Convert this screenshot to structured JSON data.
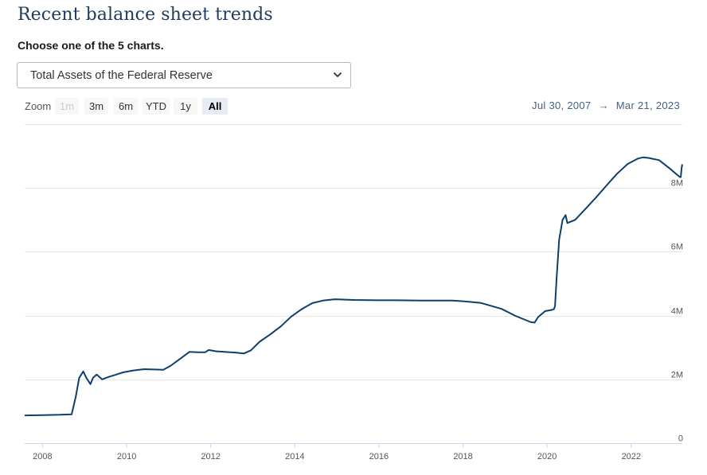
{
  "header": {
    "title": "Recent balance sheet trends",
    "choose_label": "Choose one of the 5 charts."
  },
  "selector": {
    "selected": "Total Assets of the Federal Reserve"
  },
  "zoom": {
    "label": "Zoom",
    "buttons": [
      {
        "label": "1m",
        "state": "disabled"
      },
      {
        "label": "3m",
        "state": "normal"
      },
      {
        "label": "6m",
        "state": "normal"
      },
      {
        "label": "YTD",
        "state": "normal"
      },
      {
        "label": "1y",
        "state": "normal"
      },
      {
        "label": "All",
        "state": "active"
      }
    ]
  },
  "range": {
    "from": "Jul 30, 2007",
    "separator": "→",
    "to": "Mar 21, 2023"
  },
  "colors": {
    "line": "#0d3f6e",
    "grid": "#e6e6e6",
    "title": "#1f3a5c"
  },
  "chart_data": {
    "type": "line",
    "series": [
      {
        "x": [
          "2007-07-30",
          "2008-01-01",
          "2008-06-01",
          "2008-09-10",
          "2008-10-15",
          "2008-11-15",
          "2008-12-20",
          "2009-01-15",
          "2009-02-20",
          "2009-03-15",
          "2009-04-15",
          "2009-06-01",
          "2009-08-01",
          "2009-10-01",
          "2009-12-01",
          "2010-03-01",
          "2010-06-01",
          "2010-09-01",
          "2010-11-15",
          "2011-01-15",
          "2011-04-01",
          "2011-06-30",
          "2011-09-15",
          "2011-11-15",
          "2011-12-15",
          "2012-02-15",
          "2012-05-01",
          "2012-08-01",
          "2012-10-15",
          "2012-12-15",
          "2013-03-01",
          "2013-06-01",
          "2013-09-01",
          "2013-12-01",
          "2014-03-01",
          "2014-06-01",
          "2014-09-01",
          "2014-12-15",
          "2015-06-01",
          "2016-01-01",
          "2016-06-01",
          "2017-01-01",
          "2017-06-01",
          "2017-10-01",
          "2018-01-01",
          "2018-06-01",
          "2018-12-01",
          "2019-04-01",
          "2019-08-15",
          "2019-09-15",
          "2019-10-15",
          "2019-12-15",
          "2020-02-15",
          "2020-03-01",
          "2020-03-10",
          "2020-03-25",
          "2020-04-15",
          "2020-05-15",
          "2020-06-10",
          "2020-06-25",
          "2020-09-01",
          "2020-12-01",
          "2021-03-01",
          "2021-06-01",
          "2021-09-01",
          "2021-12-01",
          "2022-03-01",
          "2022-04-15",
          "2022-06-01",
          "2022-09-01",
          "2022-12-01",
          "2023-02-15",
          "2023-03-01",
          "2023-03-08",
          "2023-03-15",
          "2023-03-21"
        ],
        "y": [
          870000,
          880000,
          890000,
          905000,
          1450000,
          2050000,
          2250000,
          2050000,
          1850000,
          2050000,
          2150000,
          2000000,
          2080000,
          2150000,
          2220000,
          2280000,
          2320000,
          2310000,
          2300000,
          2420000,
          2620000,
          2860000,
          2850000,
          2850000,
          2920000,
          2880000,
          2860000,
          2840000,
          2810000,
          2910000,
          3180000,
          3410000,
          3660000,
          3970000,
          4200000,
          4390000,
          4470000,
          4510000,
          4490000,
          4480000,
          4480000,
          4470000,
          4470000,
          4470000,
          4450000,
          4400000,
          4210000,
          3990000,
          3790000,
          3780000,
          3950000,
          4140000,
          4180000,
          4200000,
          4300000,
          5250000,
          6380000,
          7000000,
          7150000,
          6900000,
          7000000,
          7350000,
          7700000,
          8080000,
          8450000,
          8750000,
          8920000,
          8960000,
          8940000,
          8870000,
          8610000,
          8380000,
          8340000,
          8340000,
          8630000,
          8740000
        ]
      }
    ],
    "xlabel": "",
    "ylabel": "",
    "xlim": [
      "2007-07-30",
      "2023-03-21"
    ],
    "ylim": [
      0,
      10000000
    ],
    "x_ticks": [
      {
        "date": "2008-01-01",
        "label": "2008"
      },
      {
        "date": "2010-01-01",
        "label": "2010"
      },
      {
        "date": "2012-01-01",
        "label": "2012"
      },
      {
        "date": "2014-01-01",
        "label": "2014"
      },
      {
        "date": "2016-01-01",
        "label": "2016"
      },
      {
        "date": "2018-01-01",
        "label": "2018"
      },
      {
        "date": "2020-01-01",
        "label": "2020"
      },
      {
        "date": "2022-01-01",
        "label": "2022"
      }
    ],
    "y_ticks": [
      {
        "value": 0,
        "label": "0"
      },
      {
        "value": 2000000,
        "label": "2M"
      },
      {
        "value": 4000000,
        "label": "4M"
      },
      {
        "value": 6000000,
        "label": "6M"
      },
      {
        "value": 8000000,
        "label": "8M"
      },
      {
        "value": 10000000,
        "label": ""
      }
    ],
    "grid": true,
    "y_axis_side": "right"
  }
}
